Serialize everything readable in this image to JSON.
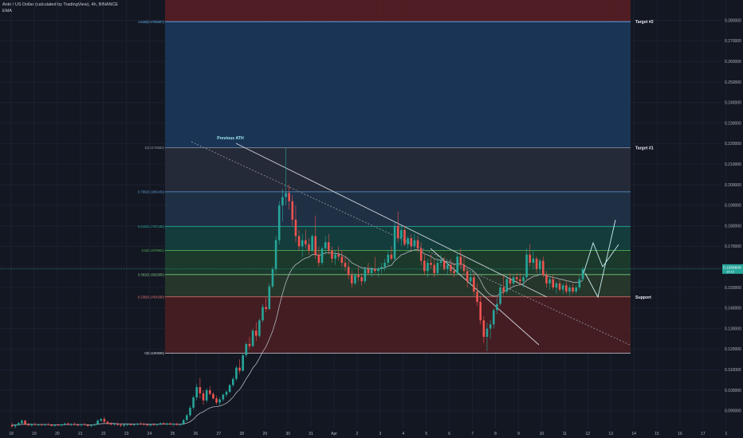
{
  "header": {
    "symbol_line": "Ankr / US Dollar (calculated by TradingView), 4h, BINANCE",
    "indicator": "EMA"
  },
  "colors": {
    "background": "#131722",
    "up": "#26a69a",
    "down": "#ef5350",
    "ema": "#b2b5be",
    "projection": "#9ce8f0"
  },
  "chart_data": {
    "type": "candlestick",
    "title": "Ankr / US Dollar (calculated by TradingView), 4h, BINANCE",
    "y_axis": {
      "range": [
        0.0814,
        0.2899
      ],
      "tick_labels": [
        "0.280000",
        "0.270000",
        "0.260000",
        "0.250000",
        "0.240000",
        "0.230000",
        "0.220000",
        "0.210000",
        "0.200000",
        "0.190000",
        "0.180000",
        "0.170000",
        "0.160000",
        "0.150000",
        "0.140000",
        "0.130000",
        "0.120000",
        "0.110000",
        "0.100000",
        "0.090000"
      ],
      "current_price": "0.1589808",
      "current_sub": "10:12"
    },
    "x_axis": {
      "tick_labels": [
        "18",
        "19",
        "20",
        "21",
        "22",
        "23",
        "24",
        "25",
        "26",
        "27",
        "28",
        "29",
        "30",
        "31",
        "Apr",
        "2",
        "3",
        "4",
        "5",
        "6",
        "7",
        "8",
        "9",
        "10",
        "11",
        "12",
        "13",
        "14",
        "15",
        "16",
        "17",
        "1"
      ]
    },
    "fib_levels": [
      {
        "ratio": "0",
        "label": "0(0.1180699)",
        "price": 0.11807
      },
      {
        "ratio": "0.236",
        "label": "0.236(0.1454296)",
        "price": 0.14543
      },
      {
        "ratio": "0.382",
        "label": "0.382(0.1562585)",
        "price": 0.15626
      },
      {
        "ratio": "0.5",
        "label": "0.5(0.1679981)",
        "price": 0.168
      },
      {
        "ratio": "0.618",
        "label": "0.618(0.1797188)",
        "price": 0.17972
      },
      {
        "ratio": "0.786",
        "label": "0.786(0.1965449)",
        "price": 0.19654
      },
      {
        "ratio": "1",
        "label": "1(0.2179582)",
        "price": 0.21796
      },
      {
        "ratio": "1.618",
        "label": "1.618(0.2793607)",
        "price": 0.27936
      }
    ],
    "annotations": [
      "Target #2",
      "Target #1",
      "Support",
      "Previous ATH"
    ],
    "candles": [
      [
        0.083,
        0.0842,
        0.082,
        0.0824
      ],
      [
        0.0824,
        0.0836,
        0.0815,
        0.0831
      ],
      [
        0.0831,
        0.0845,
        0.0826,
        0.084
      ],
      [
        0.084,
        0.0858,
        0.0835,
        0.0852
      ],
      [
        0.0852,
        0.0856,
        0.083,
        0.0833
      ],
      [
        0.0833,
        0.084,
        0.0825,
        0.0829
      ],
      [
        0.0829,
        0.0838,
        0.0822,
        0.0835
      ],
      [
        0.0835,
        0.0842,
        0.0828,
        0.0831
      ],
      [
        0.0831,
        0.0837,
        0.0825,
        0.0833
      ],
      [
        0.0833,
        0.0839,
        0.0827,
        0.083
      ],
      [
        0.083,
        0.0838,
        0.0826,
        0.0834
      ],
      [
        0.0834,
        0.084,
        0.0828,
        0.0832
      ],
      [
        0.0832,
        0.0836,
        0.0824,
        0.0827
      ],
      [
        0.0827,
        0.0835,
        0.0822,
        0.0832
      ],
      [
        0.0832,
        0.0838,
        0.0826,
        0.0829
      ],
      [
        0.0829,
        0.0836,
        0.0823,
        0.0834
      ],
      [
        0.0834,
        0.0842,
        0.0829,
        0.0838
      ],
      [
        0.0838,
        0.0844,
        0.083,
        0.0833
      ],
      [
        0.0833,
        0.0839,
        0.0826,
        0.0836
      ],
      [
        0.0836,
        0.0842,
        0.083,
        0.0832
      ],
      [
        0.0832,
        0.0837,
        0.0825,
        0.083
      ],
      [
        0.083,
        0.0836,
        0.0824,
        0.0834
      ],
      [
        0.0834,
        0.084,
        0.0828,
        0.0831
      ],
      [
        0.0831,
        0.0835,
        0.0822,
        0.0826
      ],
      [
        0.0826,
        0.0834,
        0.082,
        0.083
      ],
      [
        0.083,
        0.0838,
        0.0825,
        0.0835
      ],
      [
        0.0835,
        0.0858,
        0.0832,
        0.0852
      ],
      [
        0.0852,
        0.0865,
        0.0846,
        0.086
      ],
      [
        0.086,
        0.087,
        0.0842,
        0.0846
      ],
      [
        0.0846,
        0.0852,
        0.0832,
        0.0838
      ],
      [
        0.0838,
        0.0845,
        0.0829,
        0.0833
      ],
      [
        0.0833,
        0.084,
        0.0826,
        0.0836
      ],
      [
        0.0836,
        0.0843,
        0.0828,
        0.0831
      ],
      [
        0.0831,
        0.0837,
        0.0822,
        0.0827
      ],
      [
        0.0827,
        0.0835,
        0.0821,
        0.0832
      ],
      [
        0.0832,
        0.0839,
        0.0826,
        0.0834
      ],
      [
        0.0834,
        0.084,
        0.0828,
        0.083
      ],
      [
        0.083,
        0.0836,
        0.0824,
        0.0833
      ],
      [
        0.0833,
        0.0841,
        0.0827,
        0.0837
      ],
      [
        0.0837,
        0.0846,
        0.0831,
        0.0835
      ],
      [
        0.0835,
        0.0842,
        0.0829,
        0.0832
      ],
      [
        0.0832,
        0.0838,
        0.0826,
        0.0829
      ],
      [
        0.0829,
        0.0837,
        0.0823,
        0.0834
      ],
      [
        0.0834,
        0.084,
        0.0828,
        0.0831
      ],
      [
        0.0831,
        0.0837,
        0.0825,
        0.0835
      ],
      [
        0.0835,
        0.0843,
        0.083,
        0.0839
      ],
      [
        0.0839,
        0.0845,
        0.0832,
        0.0834
      ],
      [
        0.0834,
        0.0842,
        0.0828,
        0.0838
      ],
      [
        0.0838,
        0.0844,
        0.0831,
        0.0833
      ],
      [
        0.0833,
        0.084,
        0.0826,
        0.0836
      ],
      [
        0.0836,
        0.0842,
        0.0829,
        0.0831
      ],
      [
        0.0831,
        0.0838,
        0.0825,
        0.0834
      ],
      [
        0.0834,
        0.086,
        0.083,
        0.0855
      ],
      [
        0.0855,
        0.0885,
        0.085,
        0.0878
      ],
      [
        0.0878,
        0.0925,
        0.087,
        0.0915
      ],
      [
        0.0915,
        0.0975,
        0.0905,
        0.0965
      ],
      [
        0.0965,
        0.103,
        0.095,
        0.1015
      ],
      [
        0.1015,
        0.106,
        0.096,
        0.0985
      ],
      [
        0.0985,
        0.1,
        0.093,
        0.095
      ],
      [
        0.095,
        0.101,
        0.094,
        0.1
      ],
      [
        0.1,
        0.102,
        0.0975,
        0.0982
      ],
      [
        0.0982,
        0.099,
        0.0955,
        0.096
      ],
      [
        0.096,
        0.0975,
        0.093,
        0.094
      ],
      [
        0.094,
        0.0965,
        0.0925,
        0.0955
      ],
      [
        0.0955,
        0.0985,
        0.0945,
        0.0978
      ],
      [
        0.0978,
        0.1,
        0.0968,
        0.0992
      ],
      [
        0.0992,
        0.103,
        0.0985,
        0.1025
      ],
      [
        0.1025,
        0.1065,
        0.1015,
        0.1055
      ],
      [
        0.1055,
        0.112,
        0.1045,
        0.111
      ],
      [
        0.111,
        0.115,
        0.108,
        0.1095
      ],
      [
        0.1095,
        0.118,
        0.109,
        0.117
      ],
      [
        0.117,
        0.1235,
        0.116,
        0.1225
      ],
      [
        0.1225,
        0.126,
        0.12,
        0.1215
      ],
      [
        0.1215,
        0.13,
        0.121,
        0.129
      ],
      [
        0.129,
        0.133,
        0.124,
        0.1265
      ],
      [
        0.1265,
        0.135,
        0.1255,
        0.134
      ],
      [
        0.134,
        0.142,
        0.133,
        0.1405
      ],
      [
        0.1405,
        0.145,
        0.138,
        0.1395
      ],
      [
        0.1395,
        0.152,
        0.139,
        0.1505
      ],
      [
        0.1505,
        0.16,
        0.1495,
        0.159
      ],
      [
        0.159,
        0.175,
        0.157,
        0.173
      ],
      [
        0.173,
        0.192,
        0.171,
        0.19
      ],
      [
        0.19,
        0.198,
        0.182,
        0.194
      ],
      [
        0.194,
        0.218,
        0.19,
        0.196
      ],
      [
        0.196,
        0.2,
        0.188,
        0.192
      ],
      [
        0.192,
        0.195,
        0.18,
        0.183
      ],
      [
        0.183,
        0.19,
        0.172,
        0.175
      ],
      [
        0.175,
        0.178,
        0.168,
        0.17
      ],
      [
        0.17,
        0.176,
        0.165,
        0.173
      ],
      [
        0.173,
        0.178,
        0.169,
        0.171
      ],
      [
        0.171,
        0.174,
        0.166,
        0.168
      ],
      [
        0.168,
        0.176,
        0.167,
        0.175
      ],
      [
        0.175,
        0.185,
        0.164,
        0.166
      ],
      [
        0.166,
        0.17,
        0.16,
        0.162
      ],
      [
        0.162,
        0.17,
        0.161,
        0.169
      ],
      [
        0.169,
        0.175,
        0.166,
        0.172
      ],
      [
        0.172,
        0.176,
        0.166,
        0.168
      ],
      [
        0.168,
        0.17,
        0.162,
        0.164
      ],
      [
        0.164,
        0.168,
        0.161,
        0.166
      ],
      [
        0.166,
        0.17,
        0.163,
        0.165
      ],
      [
        0.165,
        0.168,
        0.16,
        0.162
      ],
      [
        0.162,
        0.165,
        0.158,
        0.16
      ],
      [
        0.16,
        0.163,
        0.154,
        0.156
      ],
      [
        0.156,
        0.158,
        0.15,
        0.152
      ],
      [
        0.152,
        0.157,
        0.151,
        0.156
      ],
      [
        0.156,
        0.16,
        0.153,
        0.155
      ],
      [
        0.155,
        0.157,
        0.151,
        0.153
      ],
      [
        0.153,
        0.16,
        0.152,
        0.159
      ],
      [
        0.159,
        0.162,
        0.156,
        0.157
      ],
      [
        0.157,
        0.16,
        0.155,
        0.159
      ],
      [
        0.159,
        0.165,
        0.157,
        0.158
      ],
      [
        0.158,
        0.16,
        0.155,
        0.159
      ],
      [
        0.159,
        0.162,
        0.157,
        0.16
      ],
      [
        0.16,
        0.164,
        0.158,
        0.162
      ],
      [
        0.162,
        0.168,
        0.16,
        0.166
      ],
      [
        0.166,
        0.17,
        0.163,
        0.164
      ],
      [
        0.164,
        0.182,
        0.163,
        0.18
      ],
      [
        0.18,
        0.187,
        0.172,
        0.174
      ],
      [
        0.174,
        0.18,
        0.17,
        0.178
      ],
      [
        0.178,
        0.18,
        0.17,
        0.171
      ],
      [
        0.171,
        0.175,
        0.169,
        0.174
      ],
      [
        0.174,
        0.176,
        0.168,
        0.17
      ],
      [
        0.17,
        0.176,
        0.169,
        0.173
      ],
      [
        0.173,
        0.175,
        0.167,
        0.169
      ],
      [
        0.169,
        0.172,
        0.161,
        0.163
      ],
      [
        0.163,
        0.166,
        0.156,
        0.158
      ],
      [
        0.158,
        0.164,
        0.155,
        0.162
      ],
      [
        0.162,
        0.166,
        0.159,
        0.161
      ],
      [
        0.161,
        0.164,
        0.155,
        0.157
      ],
      [
        0.157,
        0.164,
        0.156,
        0.162
      ],
      [
        0.162,
        0.166,
        0.16,
        0.163
      ],
      [
        0.163,
        0.165,
        0.158,
        0.159
      ],
      [
        0.159,
        0.163,
        0.156,
        0.161
      ],
      [
        0.161,
        0.164,
        0.156,
        0.158
      ],
      [
        0.158,
        0.162,
        0.155,
        0.157
      ],
      [
        0.157,
        0.167,
        0.156,
        0.165
      ],
      [
        0.165,
        0.169,
        0.159,
        0.161
      ],
      [
        0.161,
        0.165,
        0.156,
        0.158
      ],
      [
        0.158,
        0.16,
        0.15,
        0.153
      ],
      [
        0.153,
        0.158,
        0.151,
        0.155
      ],
      [
        0.155,
        0.157,
        0.146,
        0.148
      ],
      [
        0.148,
        0.152,
        0.141,
        0.143
      ],
      [
        0.143,
        0.146,
        0.132,
        0.134
      ],
      [
        0.134,
        0.136,
        0.123,
        0.126
      ],
      [
        0.126,
        0.133,
        0.119,
        0.13
      ],
      [
        0.13,
        0.134,
        0.125,
        0.132
      ],
      [
        0.132,
        0.14,
        0.13,
        0.139
      ],
      [
        0.139,
        0.145,
        0.137,
        0.142
      ],
      [
        0.142,
        0.152,
        0.141,
        0.15
      ],
      [
        0.15,
        0.156,
        0.146,
        0.148
      ],
      [
        0.148,
        0.156,
        0.147,
        0.154
      ],
      [
        0.154,
        0.157,
        0.15,
        0.152
      ],
      [
        0.152,
        0.156,
        0.15,
        0.155
      ],
      [
        0.155,
        0.157,
        0.152,
        0.154
      ],
      [
        0.154,
        0.157,
        0.151,
        0.153
      ],
      [
        0.153,
        0.156,
        0.15,
        0.155
      ],
      [
        0.155,
        0.169,
        0.154,
        0.166
      ],
      [
        0.166,
        0.171,
        0.16,
        0.162
      ],
      [
        0.162,
        0.168,
        0.159,
        0.164
      ],
      [
        0.164,
        0.165,
        0.157,
        0.159
      ],
      [
        0.159,
        0.164,
        0.156,
        0.163
      ],
      [
        0.163,
        0.165,
        0.155,
        0.156
      ],
      [
        0.156,
        0.158,
        0.15,
        0.152
      ],
      [
        0.152,
        0.155,
        0.149,
        0.154
      ],
      [
        0.154,
        0.156,
        0.149,
        0.15
      ],
      [
        0.15,
        0.153,
        0.147,
        0.152
      ],
      [
        0.152,
        0.154,
        0.148,
        0.149
      ],
      [
        0.149,
        0.152,
        0.147,
        0.151
      ],
      [
        0.151,
        0.153,
        0.147,
        0.148
      ],
      [
        0.148,
        0.151,
        0.146,
        0.15
      ],
      [
        0.15,
        0.152,
        0.147,
        0.148
      ],
      [
        0.148,
        0.151,
        0.147,
        0.15
      ],
      [
        0.15,
        0.156,
        0.149,
        0.154
      ],
      [
        0.154,
        0.16,
        0.153,
        0.159
      ]
    ],
    "ema": [
      0.0831,
      0.0831,
      0.0832,
      0.0834,
      0.0834,
      0.0834,
      0.0834,
      0.0833,
      0.0833,
      0.0833,
      0.0833,
      0.0833,
      0.0832,
      0.0832,
      0.0832,
      0.0832,
      0.0833,
      0.0833,
      0.0833,
      0.0833,
      0.0833,
      0.0833,
      0.0833,
      0.0832,
      0.0832,
      0.0832,
      0.0834,
      0.0837,
      0.0838,
      0.0838,
      0.0838,
      0.0838,
      0.0837,
      0.0836,
      0.0836,
      0.0836,
      0.0835,
      0.0835,
      0.0835,
      0.0835,
      0.0835,
      0.0834,
      0.0834,
      0.0834,
      0.0834,
      0.0835,
      0.0835,
      0.0835,
      0.0835,
      0.0835,
      0.0834,
      0.0834,
      0.0836,
      0.084,
      0.0847,
      0.0859,
      0.0876,
      0.0888,
      0.0895,
      0.0906,
      0.0914,
      0.0919,
      0.092,
      0.0923,
      0.0929,
      0.0937,
      0.095,
      0.0966,
      0.0988,
      0.1004,
      0.1027,
      0.1056,
      0.108,
      0.1108,
      0.1128,
      0.1156,
      0.1187,
      0.1212,
      0.1248,
      0.1288,
      0.134,
      0.1407,
      0.1471,
      0.1524,
      0.1565,
      0.1594,
      0.1611,
      0.1622,
      0.1635,
      0.1643,
      0.1648,
      0.166,
      0.166,
      0.1656,
      0.166,
      0.1669,
      0.167,
      0.1667,
      0.1666,
      0.1664,
      0.1658,
      0.165,
      0.1637,
      0.162,
      0.1612,
      0.1604,
      0.1596,
      0.1595,
      0.1592,
      0.1592,
      0.159,
      0.159,
      0.1592,
      0.1596,
      0.1604,
      0.1608,
      0.163,
      0.1643,
      0.1659,
      0.1664,
      0.1673,
      0.1677,
      0.1683,
      0.1684,
      0.1678,
      0.1664,
      0.1658,
      0.1651,
      0.164,
      0.1635,
      0.1634,
      0.1628,
      0.1625,
      0.1618,
      0.1611,
      0.1616,
      0.1615,
      0.161,
      0.1598,
      0.1591,
      0.1578,
      0.1561,
      0.1535,
      0.1502,
      0.1479,
      0.1464,
      0.1458,
      0.1459,
      0.1472,
      0.1478,
      0.149,
      0.1496,
      0.1505,
      0.151,
      0.1513,
      0.1518,
      0.1535,
      0.1544,
      0.1554,
      0.1557,
      0.1563,
      0.1563,
      0.1556,
      0.1553,
      0.1548,
      0.1546,
      0.1541,
      0.1538,
      0.1533,
      0.153,
      0.1526,
      0.1524,
      0.1526,
      0.1534
    ]
  }
}
